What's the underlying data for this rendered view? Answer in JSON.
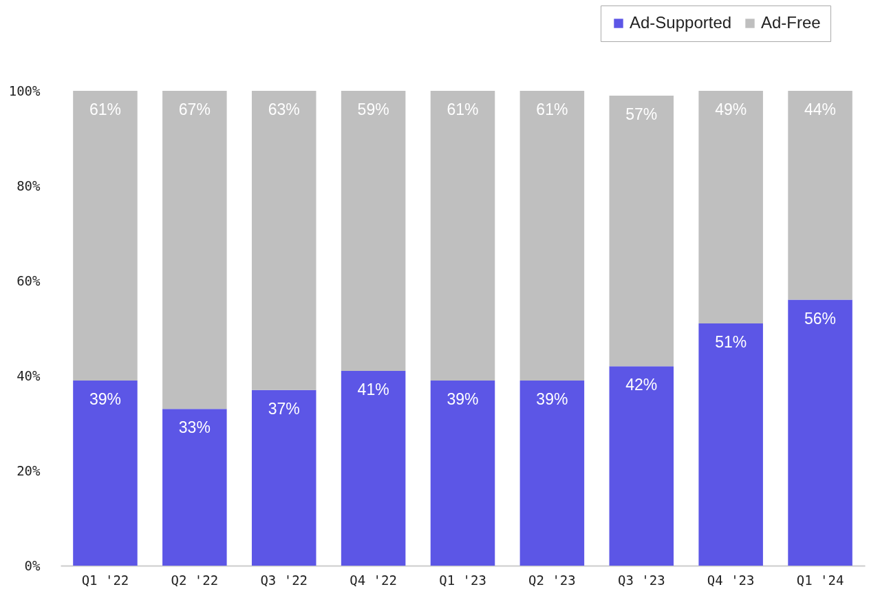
{
  "chart_data": {
    "type": "bar",
    "stacked": true,
    "categories": [
      "Q1 '22",
      "Q2 '22",
      "Q3 '22",
      "Q4 '22",
      "Q1 '23",
      "Q2 '23",
      "Q3 '23",
      "Q4 '23",
      "Q1 '24"
    ],
    "series": [
      {
        "name": "Ad-Supported",
        "color": "#5c56e6",
        "values": [
          39,
          33,
          37,
          41,
          39,
          39,
          42,
          51,
          56
        ],
        "value_labels": [
          "39%",
          "33%",
          "37%",
          "41%",
          "39%",
          "39%",
          "42%",
          "51%",
          "56%"
        ]
      },
      {
        "name": "Ad-Free",
        "color": "#bfbfbf",
        "values": [
          61,
          67,
          63,
          59,
          61,
          61,
          57,
          49,
          44
        ],
        "value_labels": [
          "61%",
          "67%",
          "63%",
          "59%",
          "61%",
          "61%",
          "57%",
          "49%",
          "44%"
        ]
      }
    ],
    "ylim": [
      0,
      100
    ],
    "yticks": [
      {
        "value": 0,
        "label": "0%"
      },
      {
        "value": 20,
        "label": "20%"
      },
      {
        "value": 40,
        "label": "40%"
      },
      {
        "value": 60,
        "label": "60%"
      },
      {
        "value": 80,
        "label": "80%"
      },
      {
        "value": 100,
        "label": "100%"
      }
    ],
    "legend": "top right"
  }
}
